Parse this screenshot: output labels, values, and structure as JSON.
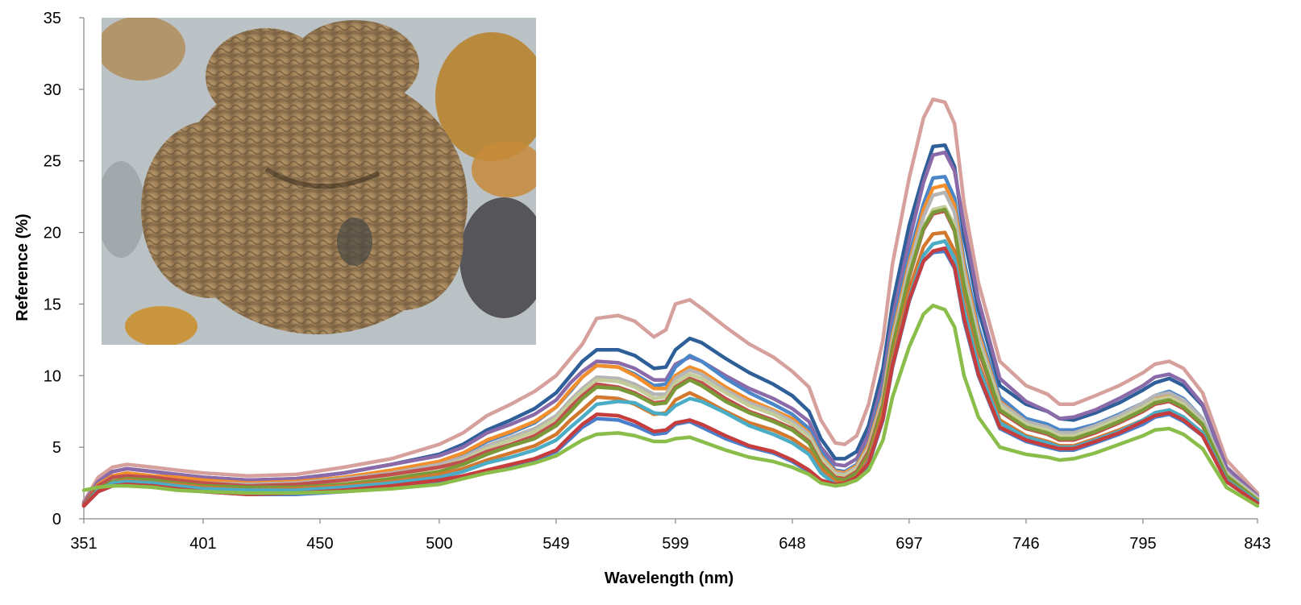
{
  "chart_data": {
    "type": "line",
    "title": "",
    "xlabel": "Wavelength (nm)",
    "ylabel": "Reference (%)",
    "xlim": [
      351,
      843
    ],
    "ylim": [
      0,
      35
    ],
    "y_ticks": [
      0,
      5,
      10,
      15,
      20,
      25,
      30,
      35
    ],
    "x_tick_labels": [
      "351",
      "401",
      "450",
      "500",
      "549",
      "599",
      "648",
      "697",
      "746",
      "795",
      "843"
    ],
    "x_tick_values": [
      351,
      401,
      450,
      500,
      549,
      599,
      648,
      697,
      746,
      795,
      843
    ],
    "grid": false,
    "legend": "none",
    "inset_image": "coral-photo",
    "x": [
      351,
      357,
      363,
      369,
      380,
      390,
      401,
      420,
      440,
      460,
      480,
      500,
      510,
      520,
      530,
      540,
      549,
      555,
      560,
      566,
      575,
      582,
      590,
      595,
      599,
      605,
      610,
      620,
      630,
      640,
      648,
      655,
      660,
      666,
      670,
      675,
      680,
      686,
      690,
      697,
      703,
      707,
      712,
      716,
      720,
      726,
      735,
      746,
      755,
      760,
      766,
      775,
      785,
      795,
      800,
      806,
      812,
      820,
      830,
      843
    ],
    "series": [
      {
        "color": "#d6a09c",
        "values": [
          1.2,
          2.9,
          3.6,
          3.8,
          3.6,
          3.4,
          3.2,
          3.0,
          3.1,
          3.6,
          4.2,
          5.2,
          6.0,
          7.2,
          8.0,
          8.9,
          10.0,
          11.2,
          12.2,
          14.0,
          14.2,
          13.8,
          12.7,
          13.2,
          15.0,
          15.3,
          14.7,
          13.4,
          12.2,
          11.3,
          10.3,
          9.2,
          6.9,
          5.3,
          5.2,
          5.8,
          8.0,
          12.5,
          17.8,
          23.8,
          28.0,
          29.3,
          29.1,
          27.6,
          22.0,
          16.5,
          11.0,
          9.3,
          8.7,
          8.0,
          8.0,
          8.6,
          9.3,
          10.2,
          10.8,
          11.0,
          10.5,
          8.8,
          4.1,
          1.8
        ]
      },
      {
        "color": "#2e5f99",
        "values": [
          1.1,
          2.6,
          3.3,
          3.5,
          3.3,
          3.1,
          2.9,
          2.7,
          2.8,
          3.2,
          3.8,
          4.5,
          5.2,
          6.2,
          6.9,
          7.7,
          8.8,
          10.0,
          11.0,
          11.8,
          11.8,
          11.4,
          10.5,
          10.6,
          11.8,
          12.6,
          12.3,
          11.2,
          10.2,
          9.4,
          8.6,
          7.5,
          5.6,
          4.2,
          4.2,
          4.7,
          6.5,
          10.5,
          15.0,
          20.5,
          24.0,
          26.0,
          26.1,
          24.6,
          19.7,
          14.6,
          9.3,
          8.0,
          7.5,
          7.0,
          6.9,
          7.4,
          8.1,
          9.0,
          9.5,
          9.8,
          9.3,
          7.9,
          3.6,
          1.6
        ]
      },
      {
        "color": "#8a6aa8",
        "values": [
          1.1,
          2.6,
          3.3,
          3.5,
          3.3,
          3.1,
          2.9,
          2.7,
          2.8,
          3.2,
          3.8,
          4.4,
          5.0,
          6.0,
          6.6,
          7.3,
          8.3,
          9.5,
          10.3,
          11.0,
          10.9,
          10.5,
          9.7,
          9.7,
          10.8,
          11.3,
          11.0,
          10.0,
          9.1,
          8.4,
          7.7,
          6.8,
          5.0,
          3.8,
          3.7,
          4.2,
          5.9,
          9.6,
          14.0,
          19.4,
          23.5,
          25.4,
          25.6,
          24.3,
          20.5,
          15.3,
          9.8,
          8.2,
          7.5,
          7.0,
          7.1,
          7.6,
          8.4,
          9.3,
          9.9,
          10.1,
          9.6,
          8.0,
          3.6,
          1.6
        ]
      },
      {
        "color": "#4a86c8",
        "values": [
          1.0,
          2.3,
          2.9,
          3.1,
          2.9,
          2.8,
          2.6,
          2.4,
          2.5,
          2.8,
          3.3,
          4.0,
          4.5,
          5.4,
          6.0,
          6.7,
          7.8,
          8.9,
          9.9,
          10.7,
          10.6,
          10.1,
          9.3,
          9.4,
          10.6,
          11.4,
          11.0,
          9.8,
          8.8,
          8.0,
          7.3,
          6.3,
          4.7,
          3.4,
          3.3,
          3.8,
          5.3,
          9.0,
          13.3,
          18.4,
          22.0,
          23.8,
          23.9,
          22.4,
          18.0,
          13.4,
          8.5,
          7.0,
          6.6,
          6.2,
          6.2,
          6.6,
          7.3,
          8.1,
          8.6,
          8.9,
          8.4,
          7.0,
          3.2,
          1.4
        ]
      },
      {
        "color": "#f28e2b",
        "values": [
          1.0,
          2.4,
          3.0,
          3.2,
          3.0,
          2.9,
          2.7,
          2.5,
          2.6,
          2.9,
          3.4,
          4.0,
          4.6,
          5.5,
          6.1,
          6.8,
          7.8,
          9.0,
          9.9,
          10.7,
          10.6,
          10.0,
          9.1,
          9.1,
          10.0,
          10.6,
          10.3,
          9.2,
          8.3,
          7.6,
          7.0,
          6.0,
          4.4,
          3.3,
          3.2,
          3.7,
          5.2,
          8.6,
          12.8,
          17.9,
          21.6,
          23.1,
          23.3,
          21.9,
          17.6,
          13.0,
          8.2,
          6.8,
          6.4,
          6.0,
          6.0,
          6.5,
          7.1,
          7.9,
          8.4,
          8.6,
          8.1,
          6.8,
          3.1,
          1.4
        ]
      },
      {
        "color": "#b5b5b5",
        "values": [
          1.0,
          2.3,
          2.9,
          3.0,
          2.9,
          2.7,
          2.5,
          2.4,
          2.5,
          2.8,
          3.2,
          3.8,
          4.3,
          5.1,
          5.7,
          6.3,
          7.2,
          8.3,
          9.1,
          9.9,
          9.8,
          9.4,
          8.7,
          8.7,
          9.8,
          10.4,
          10.1,
          9.0,
          8.1,
          7.5,
          6.8,
          5.9,
          4.3,
          3.2,
          3.1,
          3.6,
          5.0,
          8.4,
          12.5,
          17.6,
          21.1,
          22.6,
          22.8,
          21.4,
          17.2,
          12.7,
          8.1,
          6.8,
          6.4,
          6.0,
          6.0,
          6.5,
          7.2,
          8.1,
          8.6,
          8.8,
          8.3,
          7.0,
          3.2,
          1.5
        ]
      },
      {
        "color": "#c4cc9a",
        "values": [
          1.0,
          2.2,
          2.8,
          2.9,
          2.8,
          2.6,
          2.4,
          2.3,
          2.3,
          2.6,
          3.0,
          3.6,
          4.1,
          4.9,
          5.5,
          6.1,
          7.0,
          8.1,
          8.9,
          9.7,
          9.6,
          9.2,
          8.4,
          8.5,
          9.5,
          10.1,
          9.8,
          8.8,
          7.9,
          7.3,
          6.6,
          5.7,
          4.2,
          3.1,
          3.0,
          3.5,
          4.9,
          8.2,
          12.2,
          17.2,
          20.4,
          21.6,
          21.8,
          20.5,
          16.6,
          12.3,
          7.9,
          6.6,
          6.2,
          5.8,
          5.8,
          6.3,
          7.0,
          7.8,
          8.3,
          8.5,
          8.0,
          6.7,
          3.1,
          1.4
        ]
      },
      {
        "color": "#c0504d",
        "values": [
          1.0,
          2.3,
          2.9,
          3.0,
          2.9,
          2.7,
          2.5,
          2.3,
          2.4,
          2.7,
          3.1,
          3.6,
          4.0,
          4.7,
          5.2,
          5.8,
          6.7,
          7.8,
          8.6,
          9.4,
          9.2,
          8.8,
          8.1,
          8.2,
          9.2,
          9.8,
          9.5,
          8.4,
          7.5,
          6.9,
          6.3,
          5.4,
          3.9,
          2.9,
          2.8,
          3.3,
          4.7,
          8.0,
          12.0,
          16.9,
          20.2,
          21.3,
          21.5,
          20.1,
          16.2,
          11.8,
          7.5,
          6.3,
          5.9,
          5.5,
          5.5,
          6.0,
          6.7,
          7.5,
          8.0,
          8.2,
          7.7,
          6.5,
          2.9,
          1.3
        ]
      },
      {
        "color": "#7a9a3a",
        "values": [
          0.9,
          2.1,
          2.6,
          2.8,
          2.7,
          2.5,
          2.3,
          2.2,
          2.2,
          2.4,
          2.8,
          3.3,
          3.8,
          4.5,
          5.1,
          5.6,
          6.5,
          7.5,
          8.4,
          9.2,
          9.1,
          8.7,
          8.0,
          8.1,
          9.1,
          9.7,
          9.3,
          8.2,
          7.4,
          6.8,
          6.2,
          5.3,
          3.8,
          2.8,
          2.7,
          3.2,
          4.5,
          7.9,
          11.9,
          17.0,
          20.3,
          21.4,
          21.6,
          20.2,
          16.3,
          12.0,
          7.6,
          6.4,
          6.0,
          5.6,
          5.6,
          6.1,
          6.8,
          7.6,
          8.1,
          8.3,
          7.8,
          6.6,
          3.0,
          1.3
        ]
      },
      {
        "color": "#d2782f",
        "values": [
          0.9,
          2.0,
          2.5,
          2.7,
          2.5,
          2.4,
          2.2,
          2.0,
          2.1,
          2.3,
          2.6,
          3.1,
          3.5,
          4.1,
          4.6,
          5.1,
          5.9,
          6.9,
          7.6,
          8.5,
          8.4,
          8.0,
          7.3,
          7.4,
          8.3,
          8.8,
          8.4,
          7.5,
          6.7,
          6.2,
          5.6,
          4.8,
          3.5,
          2.6,
          2.5,
          2.9,
          4.2,
          7.4,
          11.2,
          16.0,
          19.0,
          19.9,
          20.0,
          18.7,
          15.0,
          10.9,
          6.9,
          5.8,
          5.4,
          5.1,
          5.1,
          5.6,
          6.2,
          6.9,
          7.4,
          7.6,
          7.1,
          6.0,
          2.7,
          1.2
        ]
      },
      {
        "color": "#4bacc6",
        "values": [
          0.9,
          2.0,
          2.5,
          2.6,
          2.5,
          2.3,
          2.1,
          2.0,
          2.0,
          2.2,
          2.5,
          2.9,
          3.3,
          3.9,
          4.3,
          4.8,
          5.5,
          6.4,
          7.1,
          8.0,
          8.2,
          8.1,
          7.4,
          7.3,
          7.9,
          8.4,
          8.2,
          7.4,
          6.5,
          5.9,
          5.3,
          4.5,
          3.2,
          2.4,
          2.4,
          2.8,
          4.0,
          7.0,
          10.8,
          15.4,
          18.4,
          19.2,
          19.4,
          18.2,
          14.6,
          10.6,
          6.7,
          5.7,
          5.3,
          5.0,
          5.0,
          5.5,
          6.1,
          6.9,
          7.4,
          7.6,
          7.1,
          6.0,
          2.7,
          1.2
        ]
      },
      {
        "color": "#4a7ecb",
        "values": [
          0.9,
          1.9,
          2.3,
          2.4,
          2.2,
          2.1,
          1.9,
          1.7,
          1.7,
          1.9,
          2.2,
          2.6,
          2.9,
          3.3,
          3.7,
          4.1,
          4.7,
          5.6,
          6.4,
          7.0,
          6.9,
          6.5,
          5.9,
          6.0,
          6.6,
          6.8,
          6.4,
          5.6,
          5.0,
          4.6,
          4.0,
          3.3,
          2.6,
          2.3,
          2.4,
          2.8,
          3.8,
          6.9,
          10.6,
          15.2,
          18.0,
          18.6,
          18.7,
          17.5,
          13.8,
          10.0,
          6.3,
          5.4,
          5.0,
          4.8,
          4.8,
          5.3,
          5.9,
          6.6,
          7.1,
          7.3,
          6.8,
          5.8,
          2.6,
          1.1
        ]
      },
      {
        "color": "#c63d3d",
        "values": [
          0.9,
          1.9,
          2.3,
          2.4,
          2.3,
          2.1,
          1.9,
          1.7,
          1.8,
          2.0,
          2.3,
          2.7,
          3.0,
          3.4,
          3.8,
          4.2,
          4.8,
          5.8,
          6.6,
          7.3,
          7.2,
          6.8,
          6.1,
          6.2,
          6.7,
          6.9,
          6.6,
          5.8,
          5.1,
          4.7,
          4.1,
          3.4,
          2.7,
          2.4,
          2.5,
          2.9,
          3.9,
          7.0,
          10.7,
          15.3,
          18.0,
          18.7,
          18.9,
          17.6,
          14.0,
          10.1,
          6.4,
          5.5,
          5.1,
          4.9,
          4.9,
          5.4,
          6.0,
          6.8,
          7.2,
          7.4,
          6.9,
          5.8,
          2.6,
          1.1
        ]
      },
      {
        "color": "#8bbd4a",
        "values": [
          2.0,
          2.2,
          2.3,
          2.3,
          2.2,
          2.0,
          1.9,
          1.8,
          1.8,
          1.9,
          2.1,
          2.4,
          2.8,
          3.2,
          3.5,
          3.9,
          4.4,
          5.0,
          5.5,
          5.9,
          6.0,
          5.8,
          5.4,
          5.4,
          5.6,
          5.7,
          5.4,
          4.8,
          4.3,
          4.0,
          3.6,
          3.1,
          2.5,
          2.3,
          2.4,
          2.7,
          3.4,
          5.5,
          8.5,
          12.0,
          14.3,
          14.9,
          14.6,
          13.4,
          10.0,
          7.1,
          5.0,
          4.5,
          4.3,
          4.1,
          4.2,
          4.6,
          5.2,
          5.8,
          6.2,
          6.3,
          5.9,
          4.9,
          2.2,
          0.9
        ]
      }
    ]
  }
}
